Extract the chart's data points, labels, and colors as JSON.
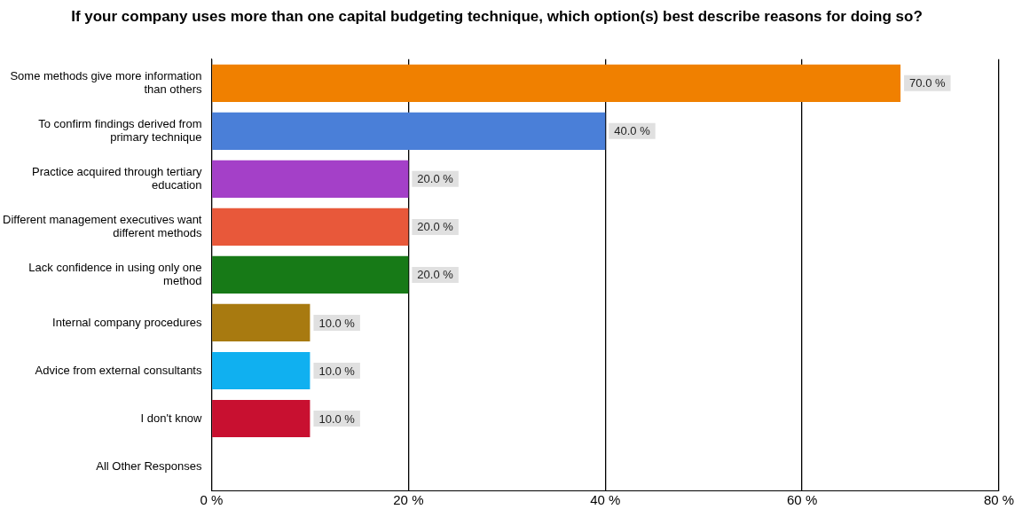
{
  "chart_data": {
    "type": "bar",
    "orientation": "horizontal",
    "title": "If your company uses more than one capital budgeting technique, which option(s) best describe reasons for doing so?",
    "categories": [
      "Some methods give more information than others",
      "To confirm findings derived from primary technique",
      "Practice acquired through tertiary education",
      "Different management executives want different methods",
      "Lack confidence in using only one method",
      "Internal company procedures",
      "Advice from external consultants",
      "I don't know",
      "All Other Responses"
    ],
    "values": [
      70,
      40,
      20,
      20,
      20,
      10,
      10,
      10,
      0
    ],
    "colors": [
      "#f08000",
      "#4a7fd8",
      "#a440c8",
      "#e8583a",
      "#177a17",
      "#a87a10",
      "#10b0f0",
      "#c81030",
      "#888888"
    ],
    "value_labels": [
      "70.0 %",
      "40.0 %",
      "20.0 %",
      "20.0 %",
      "20.0 %",
      "10.0 %",
      "10.0 %",
      "10.0 %",
      null
    ],
    "xlim": [
      0,
      80
    ],
    "xticks": [
      {
        "value": 0,
        "label": "0 %"
      },
      {
        "value": 20,
        "label": "20 %"
      },
      {
        "value": 40,
        "label": "40 %"
      },
      {
        "value": 60,
        "label": "60 %"
      },
      {
        "value": 80,
        "label": "80 %"
      }
    ],
    "grid": "x",
    "legend": false
  }
}
